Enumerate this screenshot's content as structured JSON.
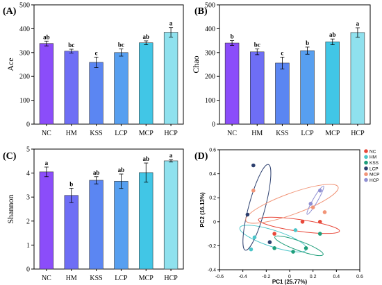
{
  "chart_data": [
    {
      "panel": "(A)",
      "type": "bar",
      "ylabel": "Ace",
      "categories": [
        "NC",
        "HM",
        "KSS",
        "LCP",
        "MCP",
        "HCP"
      ],
      "values": [
        338,
        306,
        259,
        300,
        341,
        385
      ],
      "errors": [
        10,
        8,
        22,
        15,
        8,
        20
      ],
      "letters": [
        "ab",
        "bc",
        "c",
        "bc",
        "ab",
        "a"
      ],
      "ylim": [
        0,
        500
      ],
      "yticks": [
        "0",
        "100",
        "200",
        "300",
        "400",
        "500"
      ],
      "colors": [
        "#8b4dfa",
        "#6e6ef5",
        "#5b86f2",
        "#579ff0",
        "#41c6e6",
        "#8fe1ee"
      ]
    },
    {
      "panel": "(B)",
      "type": "bar",
      "ylabel": "Chao",
      "categories": [
        "NC",
        "HM",
        "KSS",
        "LCP",
        "MCP",
        "HCP"
      ],
      "values": [
        340,
        303,
        256,
        308,
        345,
        384
      ],
      "errors": [
        10,
        12,
        25,
        15,
        12,
        20
      ],
      "letters": [
        "b",
        "bc",
        "c",
        "b",
        "ab",
        "a"
      ],
      "ylim": [
        0,
        500
      ],
      "yticks": [
        "0",
        "100",
        "200",
        "300",
        "400",
        "500"
      ],
      "colors": [
        "#8b4dfa",
        "#6e6ef5",
        "#5b86f2",
        "#579ff0",
        "#41c6e6",
        "#8fe1ee"
      ]
    },
    {
      "panel": "(C)",
      "type": "bar",
      "ylabel": "Shannon",
      "categories": [
        "NC",
        "HM",
        "KSS",
        "LCP",
        "MCP",
        "HCP"
      ],
      "values": [
        4.05,
        3.07,
        3.7,
        3.66,
        4.02,
        4.51
      ],
      "errors": [
        0.2,
        0.3,
        0.15,
        0.3,
        0.4,
        0.05
      ],
      "letters": [
        "a",
        "b",
        "ab",
        "ab",
        "ab",
        "a"
      ],
      "ylim": [
        0,
        5
      ],
      "yticks": [
        "0",
        "1",
        "2",
        "3",
        "4",
        "5"
      ],
      "colors": [
        "#8b4dfa",
        "#6e6ef5",
        "#5b86f2",
        "#579ff0",
        "#41c6e6",
        "#8fe1ee"
      ]
    },
    {
      "panel": "(D)",
      "type": "scatter",
      "xlabel": "PC1 (25.77%)",
      "ylabel": "PC2 (16.13%)",
      "xlim": [
        -0.6,
        0.6
      ],
      "ylim": [
        -0.4,
        0.6
      ],
      "xticks": [
        "-0.6",
        "-0.4",
        "-0.2",
        "0",
        "0.2",
        "0.4",
        "0.6"
      ],
      "yticks": [
        "-0.4",
        "-0.2",
        "0",
        "0.2",
        "0.4",
        "0.6"
      ],
      "legend_position": "top-right",
      "series": [
        {
          "name": "NC",
          "color": "#e8483a",
          "points": [
            [
              -0.13,
              -0.1
            ],
            [
              0.11,
              0.0
            ],
            [
              0.26,
              0.0
            ]
          ],
          "ellipse": {
            "cx": 0.08,
            "cy": -0.03,
            "rx": 0.35,
            "ry": 0.05,
            "angle": 8
          }
        },
        {
          "name": "HM",
          "color": "#4bc5c9",
          "points": [
            [
              -0.3,
              -0.13
            ],
            [
              -0.33,
              -0.23
            ],
            [
              0.05,
              -0.07
            ]
          ],
          "ellipse": {
            "cx": -0.14,
            "cy": -0.14,
            "rx": 0.3,
            "ry": 0.07,
            "angle": 18
          }
        },
        {
          "name": "KSS",
          "color": "#1e9e7a",
          "points": [
            [
              -0.13,
              -0.22
            ],
            [
              0.14,
              -0.22
            ],
            [
              0.26,
              -0.1
            ],
            [
              0.03,
              -0.25
            ]
          ],
          "ellipse": {
            "cx": 0.08,
            "cy": -0.2,
            "rx": 0.22,
            "ry": 0.04,
            "angle": 20
          }
        },
        {
          "name": "LCP",
          "color": "#2c3f6e",
          "points": [
            [
              -0.31,
              0.47
            ],
            [
              -0.36,
              0.06
            ],
            [
              -0.17,
              -0.17
            ]
          ],
          "ellipse": {
            "cx": -0.28,
            "cy": 0.12,
            "rx": 0.38,
            "ry": 0.07,
            "angle": -75
          }
        },
        {
          "name": "MCP",
          "color": "#f19578",
          "points": [
            [
              -0.31,
              0.26
            ],
            [
              0.3,
              0.08
            ],
            [
              0.2,
              0.12
            ]
          ],
          "ellipse": {
            "cx": 0.02,
            "cy": 0.15,
            "rx": 0.42,
            "ry": 0.09,
            "angle": -20
          }
        },
        {
          "name": "HCP",
          "color": "#8f8fd2",
          "points": [
            [
              0.26,
              0.26
            ],
            [
              0.18,
              0.15
            ]
          ],
          "ellipse": {
            "cx": 0.22,
            "cy": 0.18,
            "rx": 0.14,
            "ry": 0.02,
            "angle": -60
          }
        }
      ]
    }
  ]
}
